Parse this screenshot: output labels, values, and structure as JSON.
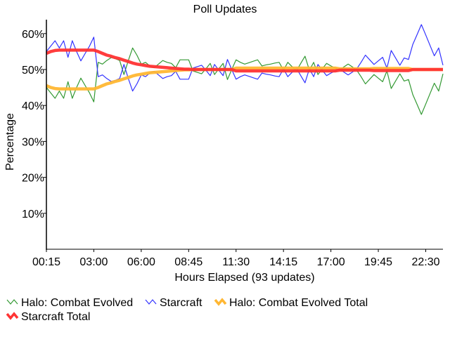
{
  "chart_data": {
    "type": "line",
    "title": "Poll Updates",
    "xlabel": "Hours Elapsed (93 updates)",
    "ylabel": "Percentage",
    "ylim": [
      0,
      60
    ],
    "yticks": [
      "10%",
      "20%",
      "30%",
      "40%",
      "50%",
      "60%"
    ],
    "ytick_values": [
      10,
      20,
      30,
      40,
      50,
      60
    ],
    "xticks": [
      "00:15",
      "03:00",
      "06:00",
      "08:45",
      "11:30",
      "14:15",
      "17:00",
      "19:45",
      "22:30"
    ],
    "xtick_every": 11,
    "point_count": 93,
    "legend_placement": "bottom",
    "series": [
      {
        "name": "Halo: Combat Evolved",
        "color": "#339933",
        "style": "thin",
        "values": [
          45,
          43.5,
          42,
          44,
          42,
          46.6,
          42,
          45,
          47.6,
          45.5,
          43.5,
          41,
          52,
          51.5,
          52.5,
          53.3,
          53,
          52.5,
          48.6,
          52.5,
          56,
          54,
          51.5,
          52,
          51,
          50.5,
          51.5,
          52.5,
          52,
          51.7,
          50.5,
          52.7,
          52.7,
          52.7,
          49.6,
          49.2,
          48.8,
          50.2,
          51.7,
          48.6,
          50.2,
          51.7,
          47.2,
          50,
          52.7,
          52,
          51.5,
          51.9,
          52.3,
          52.7,
          51,
          51.3,
          51.5,
          51.8,
          52,
          49.8,
          52,
          50.8,
          49.6,
          51.7,
          53.7,
          49.8,
          52,
          48.6,
          50.2,
          51.7,
          51,
          50.4,
          49.8,
          50.7,
          51.5,
          50.7,
          49.8,
          48,
          46,
          47.3,
          48.6,
          47.6,
          46.6,
          49.6,
          44.7,
          46.8,
          48.8,
          46.8,
          47.2,
          43,
          40.3,
          37.5,
          40.4,
          43.3,
          46.2,
          44,
          48.8
        ]
      },
      {
        "name": "Starcraft",
        "color": "#3333ff",
        "style": "thin",
        "values": [
          55,
          56.5,
          58,
          56,
          58,
          53.4,
          58,
          55,
          52.4,
          54.5,
          56.5,
          59,
          48,
          48.5,
          47.5,
          46.7,
          47,
          47.5,
          51.4,
          47.5,
          44,
          46,
          48.5,
          48,
          49,
          49.5,
          48.5,
          47.5,
          48,
          48.3,
          49.5,
          47.3,
          47.3,
          47.3,
          50.4,
          50.8,
          51.2,
          49.8,
          48.3,
          51.4,
          49.8,
          48.3,
          52.8,
          50,
          47.3,
          48,
          48.5,
          48.1,
          47.7,
          47.3,
          49,
          48.7,
          48.5,
          48.2,
          48,
          50.2,
          48,
          49.2,
          50.4,
          48.3,
          46.3,
          50.2,
          48,
          51.4,
          49.8,
          48.3,
          49,
          49.6,
          50.2,
          49.3,
          48.5,
          49.3,
          50.2,
          52,
          54,
          52.7,
          51.4,
          52.4,
          53.4,
          50.4,
          55.3,
          53.2,
          51.2,
          53.2,
          52.8,
          57,
          59.7,
          62.5,
          59.6,
          56.7,
          53.8,
          56,
          51.2
        ]
      },
      {
        "name": "Halo: Combat Evolved Total",
        "color": "#ffb733",
        "style": "thick",
        "values": [
          45.5,
          45,
          44.7,
          44.6,
          44.6,
          44.6,
          44.6,
          44.6,
          44.6,
          44.6,
          44.6,
          44.6,
          45,
          45.5,
          46,
          46.3,
          46.7,
          47,
          47.4,
          47.8,
          48.2,
          48.5,
          48.7,
          48.9,
          49.1,
          49.2,
          49.3,
          49.4,
          49.5,
          49.6,
          49.7,
          49.8,
          49.9,
          49.9,
          50,
          50,
          50,
          50,
          50,
          50,
          50,
          50,
          50,
          50,
          50.4,
          50.4,
          50.4,
          50.4,
          50.4,
          50.4,
          50.4,
          50.4,
          50.4,
          50.4,
          50.4,
          50.4,
          50.4,
          50.4,
          50.4,
          50.4,
          50.4,
          50.4,
          50.4,
          50.4,
          50.4,
          50.4,
          50.4,
          50.4,
          50.2,
          50.2,
          50.2,
          50.2,
          50.2,
          50.2,
          50.2,
          50.2,
          50.3,
          50.3,
          50.3,
          50.3,
          50.3,
          50.3,
          50.3,
          50.3,
          50.3,
          50,
          50,
          50,
          50,
          50,
          50,
          50,
          50
        ]
      },
      {
        "name": "Starcraft Total",
        "color": "#ff3333",
        "style": "thick",
        "values": [
          54.5,
          55,
          55.3,
          55.4,
          55.4,
          55.4,
          55.4,
          55.4,
          55.4,
          55.4,
          55.4,
          55.4,
          55,
          54.5,
          54,
          53.7,
          53.3,
          53,
          52.6,
          52.2,
          51.8,
          51.5,
          51.3,
          51.1,
          50.9,
          50.8,
          50.7,
          50.6,
          50.5,
          50.4,
          50.3,
          50.2,
          50.1,
          50.1,
          50,
          50,
          50,
          50,
          50,
          50,
          50,
          50,
          50,
          50,
          49.6,
          49.6,
          49.6,
          49.6,
          49.6,
          49.6,
          49.6,
          49.6,
          49.6,
          49.6,
          49.6,
          49.6,
          49.6,
          49.6,
          49.6,
          49.6,
          49.6,
          49.6,
          49.6,
          49.6,
          49.6,
          49.6,
          49.6,
          49.6,
          49.8,
          49.8,
          49.8,
          49.8,
          49.8,
          49.8,
          49.8,
          49.8,
          49.7,
          49.7,
          49.7,
          49.7,
          49.7,
          49.7,
          49.7,
          49.7,
          49.7,
          50,
          50,
          50,
          50,
          50,
          50,
          50,
          50
        ]
      }
    ]
  }
}
